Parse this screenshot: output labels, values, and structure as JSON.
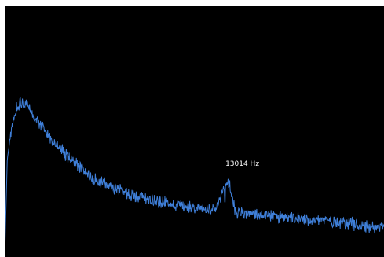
{
  "window": {
    "background": "#ffffff",
    "plot_background": "#000000"
  },
  "chart_data": {
    "type": "line",
    "title": "",
    "xlabel": "",
    "ylabel": "",
    "x_unit": "Hz",
    "grid": false,
    "legend": "none",
    "xlim": [
      0,
      22050
    ],
    "ylim": [
      0,
      1
    ],
    "series": [
      {
        "color": "#3f7fd8",
        "x": [
          0,
          150,
          400,
          700,
          1000,
          1300,
          1700,
          2200,
          2800,
          3500,
          4300,
          5200,
          6200,
          7300,
          8500,
          9800,
          11000,
          12200,
          13014,
          13400,
          14500,
          15800,
          17000,
          18200,
          19400,
          20500,
          21300,
          22050
        ],
        "y": [
          0.0,
          0.39,
          0.51,
          0.6,
          0.62,
          0.6,
          0.56,
          0.52,
          0.46,
          0.41,
          0.36,
          0.31,
          0.28,
          0.25,
          0.23,
          0.21,
          0.2,
          0.18,
          0.31,
          0.18,
          0.17,
          0.16,
          0.15,
          0.15,
          0.14,
          0.13,
          0.12,
          0.12
        ]
      }
    ],
    "annotations": [
      {
        "text": "13014 Hz",
        "x": 13014,
        "y": 0.31
      }
    ]
  }
}
